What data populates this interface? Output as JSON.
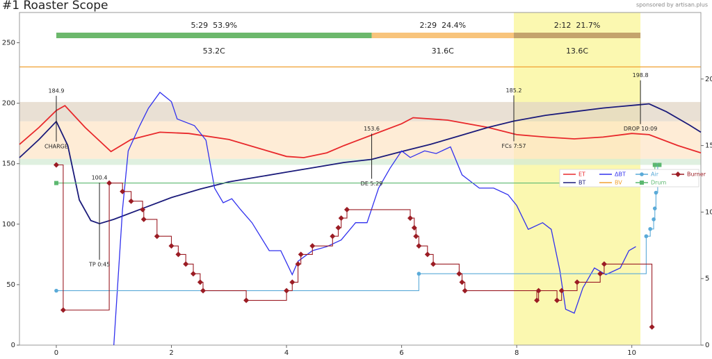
{
  "chart_data": {
    "type": "roast-profile",
    "title": "#1 Roaster Scope",
    "sponsor": "sponsored by artisan.plus",
    "xlim": [
      -0.64,
      11.2
    ],
    "xticks": [
      0,
      2,
      4,
      6,
      8,
      10
    ],
    "ylim": [
      0,
      275
    ],
    "yticks": [
      0,
      50,
      100,
      150,
      200,
      250
    ],
    "y2lim": [
      0,
      25
    ],
    "y2ticks": [
      0,
      5,
      10,
      15,
      20
    ],
    "highlight": {
      "xlim": [
        7.95,
        10.15
      ],
      "color": "#fbf8b0"
    },
    "bands": [
      {
        "ylim": [
          185,
          201
        ],
        "color": "#e2d6c6"
      },
      {
        "ylim": [
          154,
          185
        ],
        "color": "#fde6c8"
      },
      {
        "ylim": [
          149,
          154
        ],
        "color": "#d4ebd6"
      }
    ],
    "alarm_line": {
      "value": 230,
      "color": "#f0a030"
    },
    "phases": [
      {
        "label": "5:29  53.9%",
        "delta": "53.2C",
        "start": 0,
        "end": 5.48,
        "color": "#6cb86c"
      },
      {
        "label": "2:29  24.4%",
        "delta": "31.6C",
        "start": 5.48,
        "end": 7.95,
        "color": "#f8c47c"
      },
      {
        "label": "2:12  21.7%",
        "delta": "13.6C",
        "start": 7.95,
        "end": 10.15,
        "color": "#c4a46c"
      }
    ],
    "series": [
      {
        "name": "ET",
        "color": "#e8282b",
        "style": "line",
        "x": [
          -0.64,
          -0.3,
          0,
          0.15,
          0.5,
          0.95,
          1.3,
          1.8,
          2.3,
          3,
          3.5,
          4,
          4.3,
          4.7,
          5,
          5.5,
          6,
          6.2,
          6.8,
          7.5,
          8,
          8.5,
          9,
          9.5,
          10,
          10.3,
          10.8,
          11.2
        ],
        "values": [
          166,
          180,
          194,
          198,
          180,
          160,
          170,
          176,
          175,
          170,
          163,
          156,
          155,
          159,
          165,
          174,
          183,
          188,
          186,
          180,
          174,
          172,
          170.5,
          172,
          175,
          174,
          165,
          159
        ]
      },
      {
        "name": "BT",
        "color": "#1a1a7a",
        "style": "line",
        "x": [
          -0.64,
          -0.3,
          0,
          0.2,
          0.4,
          0.6,
          0.75,
          1,
          1.5,
          2,
          2.5,
          3,
          3.5,
          4,
          4.5,
          5,
          5.48,
          6,
          6.5,
          7,
          7.5,
          7.95,
          8.5,
          9,
          9.5,
          10.15,
          10.3,
          10.6,
          11,
          11.2
        ],
        "values": [
          155,
          170,
          184.9,
          165,
          120,
          103,
          100.4,
          104,
          113,
          122,
          129,
          135,
          139,
          143,
          147,
          151,
          153.6,
          160,
          166,
          173,
          180,
          185.2,
          190,
          193,
          196,
          198.8,
          199.5,
          193,
          182,
          176
        ]
      },
      {
        "name": "ΔBT",
        "color": "#3030ee",
        "style": "line",
        "axis": "y2",
        "x": [
          1,
          1.15,
          1.25,
          1.45,
          1.6,
          1.8,
          2,
          2.1,
          2.4,
          2.6,
          2.75,
          2.9,
          3.05,
          3.2,
          3.4,
          3.7,
          3.9,
          4.1,
          4.2,
          4.45,
          4.7,
          4.95,
          5.2,
          5.4,
          5.6,
          5.8,
          6,
          6.15,
          6.4,
          6.6,
          6.85,
          7.05,
          7.35,
          7.6,
          7.85,
          8,
          8.2,
          8.45,
          8.6,
          8.75,
          8.85,
          9,
          9.15,
          9.35,
          9.55,
          9.8,
          9.95,
          10.07
        ],
        "values": [
          0,
          10.2,
          14.6,
          16.5,
          17.8,
          19,
          18.3,
          17,
          16.5,
          15.4,
          11.8,
          10.7,
          11,
          10.2,
          9.2,
          7.1,
          7.1,
          5.3,
          6.3,
          7.1,
          7.4,
          7.9,
          9.2,
          9.2,
          11.8,
          13.3,
          14.6,
          14.1,
          14.6,
          14.4,
          14.9,
          12.8,
          11.8,
          11.8,
          11.3,
          10.5,
          8.7,
          9.2,
          8.7,
          5.6,
          2.7,
          2.4,
          4.3,
          5.8,
          5.3,
          5.8,
          7.1,
          7.4
        ]
      },
      {
        "name": "BV",
        "color": "#f0a030",
        "style": "line",
        "x": [],
        "values": []
      },
      {
        "name": "Air",
        "color": "#5aaad8",
        "style": "step",
        "marker": "circle",
        "x": [
          0,
          6.3,
          10.25,
          10.32,
          10.38,
          10.4,
          10.42,
          10.45
        ],
        "values": [
          45,
          59,
          90,
          96,
          104,
          113,
          126,
          149
        ]
      },
      {
        "name": "Drum",
        "color": "#5cb870",
        "style": "step",
        "marker": "square",
        "x": [
          0,
          10.4,
          10.48
        ],
        "values": [
          134,
          149,
          149
        ]
      },
      {
        "name": "Burner",
        "color": "#9b1c24",
        "style": "step",
        "marker": "diamond",
        "x": [
          0,
          0.12,
          0.92,
          1.15,
          1.3,
          1.5,
          1.52,
          1.75,
          2,
          2.12,
          2.25,
          2.38,
          2.5,
          2.55,
          3.3,
          4,
          4.1,
          4.2,
          4.25,
          4.45,
          4.8,
          4.9,
          4.95,
          5.05,
          6.15,
          6.22,
          6.25,
          6.3,
          6.45,
          6.55,
          7,
          7.05,
          7.1,
          8.35,
          8.38,
          8.7,
          8.78,
          9.05,
          9.45,
          9.52,
          10.35
        ],
        "values": [
          149,
          29,
          134,
          127,
          119,
          112,
          104,
          90,
          82,
          75,
          67,
          59,
          52,
          45,
          37,
          45,
          52,
          67,
          75,
          82,
          90,
          97,
          105,
          112,
          105,
          97,
          90,
          82,
          75,
          67,
          59,
          52,
          45,
          37,
          45,
          37,
          45,
          52,
          59,
          67,
          15
        ]
      }
    ],
    "annotations": [
      {
        "event": "CHARGE",
        "x": 0,
        "y": 184.9
      },
      {
        "event": "TP 0:45",
        "x": 0.75,
        "y": 100.4
      },
      {
        "event": "DE 5:29",
        "x": 5.48,
        "y": 153.6
      },
      {
        "event": "FCs 7:57",
        "x": 7.95,
        "y": 185.2
      },
      {
        "event": "DROP 10:09",
        "x": 10.15,
        "y": 198.8
      }
    ]
  }
}
